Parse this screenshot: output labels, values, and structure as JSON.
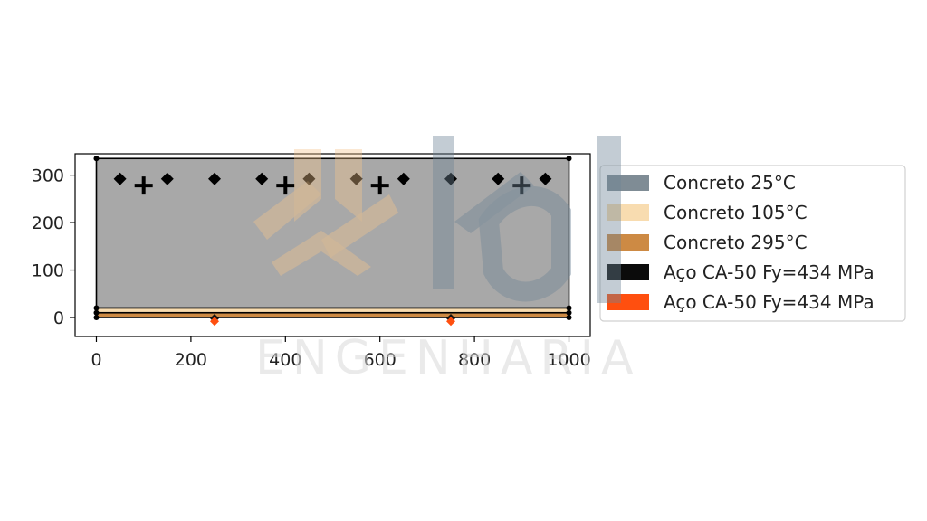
{
  "chart_data": {
    "type": "scatter",
    "title": "",
    "xlabel": "",
    "ylabel": "",
    "xlim": [
      -45,
      1045
    ],
    "ylim": [
      -40,
      345
    ],
    "x_ticks": [
      "0",
      "200",
      "400",
      "600",
      "800",
      "1000"
    ],
    "y_ticks": [
      "0",
      "100",
      "200",
      "300"
    ],
    "grid": false,
    "legend_placement": "right",
    "legend": [
      {
        "label": "Concreto 25°C",
        "color": "#7f8c95"
      },
      {
        "label": "Concreto 105°C",
        "color": "#f8dcb0"
      },
      {
        "label": "Concreto 295°C",
        "color": "#cd8a44"
      },
      {
        "label": "Aço CA-50 Fy=434 MPa",
        "color": "#0b0b0b"
      },
      {
        "label": "Aço CA-50 Fy=434 MPa",
        "color": "#ff4f0f"
      }
    ],
    "regions": [
      {
        "name": "Concreto 25°C",
        "x": [
          0,
          1000
        ],
        "y": [
          20,
          335
        ],
        "color": "#a8a8a8"
      },
      {
        "name": "Concreto 105°C",
        "x": [
          0,
          1000
        ],
        "y": [
          10,
          20
        ],
        "color": "#f8dcb0"
      },
      {
        "name": "Concreto 295°C",
        "x": [
          0,
          1000
        ],
        "y": [
          0,
          10
        ],
        "color": "#cd8a44"
      }
    ],
    "corner_points": [
      {
        "x": 0,
        "y": 335
      },
      {
        "x": 1000,
        "y": 335
      },
      {
        "x": 0,
        "y": 20
      },
      {
        "x": 1000,
        "y": 20
      },
      {
        "x": 0,
        "y": 10
      },
      {
        "x": 1000,
        "y": 10
      },
      {
        "x": 0,
        "y": 0
      },
      {
        "x": 1000,
        "y": 0
      }
    ],
    "diamond_markers": [
      {
        "x": 50,
        "y": 292
      },
      {
        "x": 150,
        "y": 292
      },
      {
        "x": 250,
        "y": 292
      },
      {
        "x": 350,
        "y": 292
      },
      {
        "x": 450,
        "y": 292
      },
      {
        "x": 550,
        "y": 292
      },
      {
        "x": 650,
        "y": 292
      },
      {
        "x": 750,
        "y": 292
      },
      {
        "x": 850,
        "y": 292
      },
      {
        "x": 950,
        "y": 292
      }
    ],
    "plus_markers": [
      {
        "x": 100,
        "y": 278
      },
      {
        "x": 400,
        "y": 278
      },
      {
        "x": 600,
        "y": 278
      },
      {
        "x": 900,
        "y": 278
      }
    ],
    "bottom_bars": [
      {
        "x": 250,
        "y": -2
      },
      {
        "x": 750,
        "y": -2
      }
    ],
    "bottom_bars_orange": [
      {
        "x": 250,
        "y": -8
      },
      {
        "x": 750,
        "y": -8
      }
    ]
  },
  "watermark": {
    "text": "ENGENHARIA"
  }
}
